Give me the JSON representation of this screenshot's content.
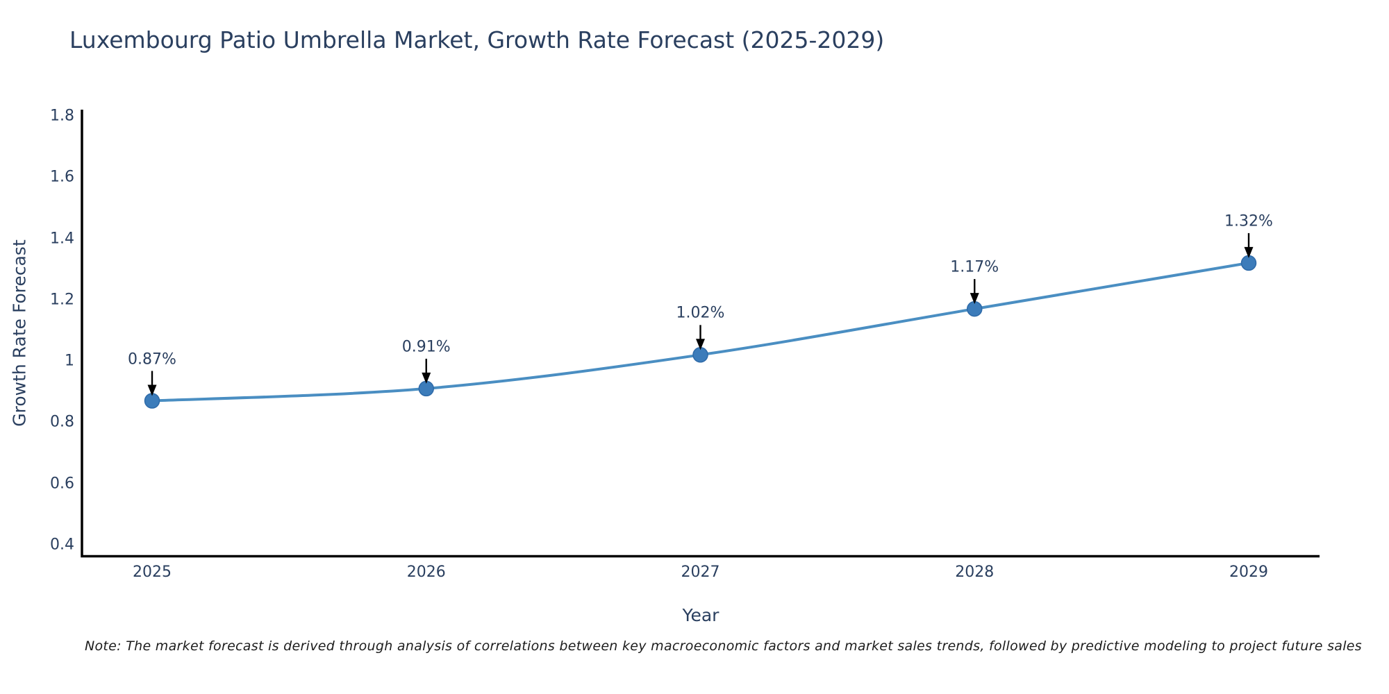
{
  "title": "Luxembourg Patio Umbrella Market, Growth Rate Forecast (2025-2029)",
  "note": "Note: The market forecast is derived through analysis of correlations between key macroeconomic factors and market sales trends, followed by predictive modeling to project future sales",
  "chart_data": {
    "type": "line",
    "title": "Luxembourg Patio Umbrella Market, Growth Rate Forecast (2025-2029)",
    "xlabel": "Year",
    "ylabel": "Growth Rate Forecast",
    "categories": [
      "2025",
      "2026",
      "2027",
      "2028",
      "2029"
    ],
    "values": [
      0.87,
      0.91,
      1.02,
      1.17,
      1.32
    ],
    "point_labels": [
      "0.87%",
      "0.91%",
      "1.02%",
      "1.17%",
      "1.32%"
    ],
    "ylim": [
      0.4,
      1.8
    ],
    "yticks": [
      0.4,
      0.6,
      0.8,
      1,
      1.2,
      1.4,
      1.6,
      1.8
    ],
    "ytick_labels": [
      "0.4",
      "0.6",
      "0.8",
      "1",
      "1.2",
      "1.4",
      "1.6",
      "1.8"
    ],
    "grid": false,
    "legend_position": "none",
    "line_smoothing": "spline",
    "colors": {
      "line": "#4a8ec2",
      "marker_fill": "#3c7cba",
      "marker_edge": "#2e6aa8",
      "axis_line": "#000000",
      "annotation_arrow": "#000000",
      "text": "#2a3f5f"
    }
  }
}
